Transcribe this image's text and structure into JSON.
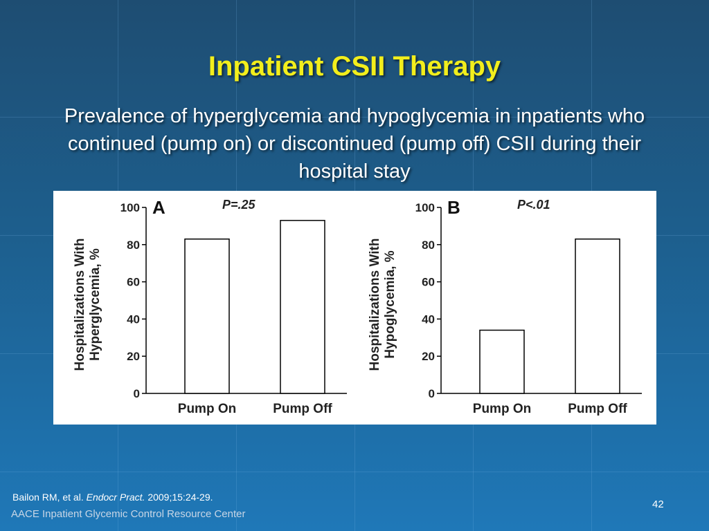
{
  "slide": {
    "title": "Inpatient CSII Therapy",
    "subtitle": "Prevalence of hyperglycemia and hypoglycemia in inpatients who continued (pump on) or discontinued (pump off) CSII during their hospital stay",
    "citation_authors": "Bailon RM, et al. ",
    "citation_journal": "Endocr Pract.",
    "citation_rest": " 2009;15:24-29.",
    "organization": "AACE Inpatient Glycemic Control Resource Center",
    "page_number": "42"
  },
  "colors": {
    "title": "#f2ee1c",
    "background_top": "#1e4d72",
    "background_bottom": "#1f78b8",
    "bar_fill": "#ffffff",
    "bar_stroke": "#000000"
  },
  "chart_data": [
    {
      "type": "bar",
      "panel_label": "A",
      "annotation": "P=.25",
      "categories": [
        "Pump On",
        "Pump Off"
      ],
      "values": [
        83,
        93
      ],
      "ylabel_line1": "Hospitalizations With",
      "ylabel_line2": "Hyperglycemia, %",
      "ylim": [
        0,
        100
      ],
      "yticks": [
        "0",
        "20",
        "40",
        "60",
        "80",
        "100"
      ]
    },
    {
      "type": "bar",
      "panel_label": "B",
      "annotation": "P<.01",
      "categories": [
        "Pump On",
        "Pump Off"
      ],
      "values": [
        34,
        83
      ],
      "ylabel_line1": "Hospitalizations With",
      "ylabel_line2": "Hypoglycemia, %",
      "ylim": [
        0,
        100
      ],
      "yticks": [
        "0",
        "20",
        "40",
        "60",
        "80",
        "100"
      ]
    }
  ]
}
